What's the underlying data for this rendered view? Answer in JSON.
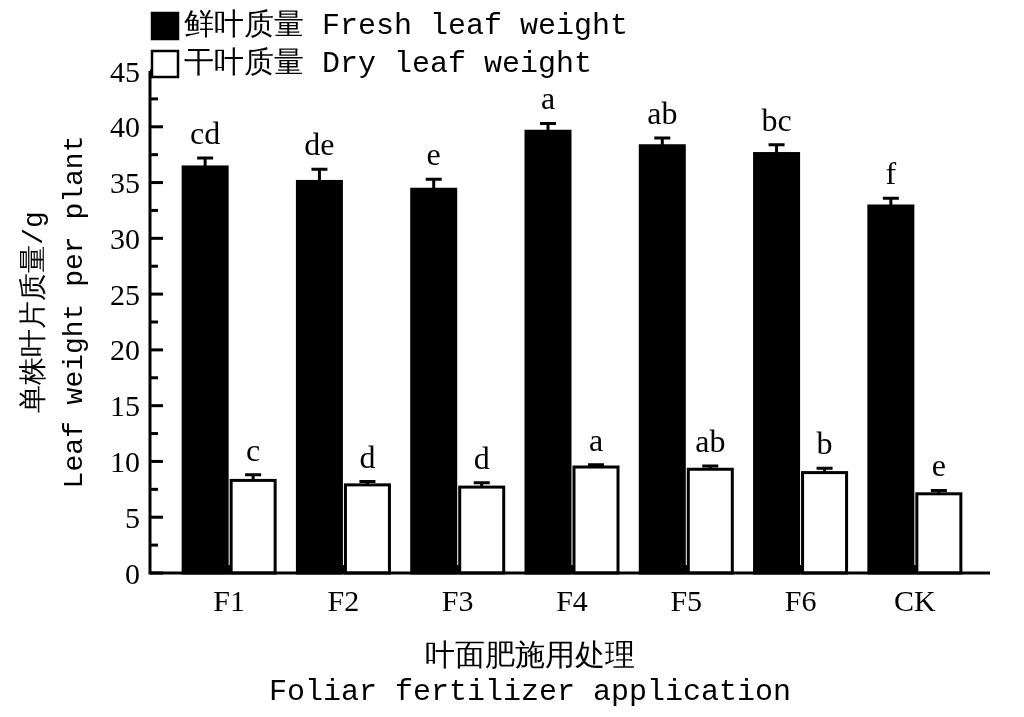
{
  "chart_data": {
    "type": "bar",
    "xlabel": "叶面肥施用处理\nFoliar fertilizer application",
    "ylabel": "单株叶片质量/g\nLeaf weight per plant",
    "categories": [
      "F1",
      "F2",
      "F3",
      "F4",
      "F5",
      "F6",
      "CK"
    ],
    "series": [
      {
        "name": "鲜叶质量 Fresh leaf weight",
        "color": "#000000",
        "values": [
          36.4,
          35.1,
          34.4,
          39.6,
          38.3,
          37.6,
          32.9
        ],
        "errors": [
          0.8,
          1.1,
          0.9,
          0.7,
          0.7,
          0.8,
          0.7
        ]
      },
      {
        "name": "干叶质量 Dry leaf weight",
        "color": "#ffffff",
        "values": [
          8.3,
          7.9,
          7.7,
          9.5,
          9.3,
          9.0,
          7.1
        ],
        "errors": [
          0.5,
          0.3,
          0.4,
          0.2,
          0.3,
          0.4,
          0.3
        ]
      }
    ],
    "ylim": [
      0,
      45
    ],
    "yticks": [
      0,
      {
        "value": 2.5,
        "label": null
      },
      5,
      {
        "value": 7.5,
        "label": null
      },
      10,
      {
        "value": 12.5,
        "label": null
      },
      15,
      {
        "value": 17.5,
        "label": null
      },
      20,
      {
        "value": 22.5,
        "label": null
      },
      25,
      {
        "value": 27.5,
        "label": null
      },
      30,
      {
        "value": 32.5,
        "label": null
      },
      35,
      {
        "value": 37.5,
        "label": null
      },
      40,
      {
        "value": 42.5,
        "label": null
      },
      45
    ],
    "legend": "top left",
    "grid": false,
    "annotations": [
      {
        "text": "cd",
        "x": "F1",
        "y": 36.4
      },
      {
        "text": "de",
        "x": "F2",
        "y": 35.1
      },
      {
        "text": "e",
        "x": "F3",
        "y": 34.4
      },
      {
        "text": "a",
        "x": "F4",
        "y": 39.6
      },
      {
        "text": "ab",
        "x": "F5",
        "y": 38.3
      },
      {
        "text": "bc",
        "x": "F6",
        "y": 37.6
      },
      {
        "text": "f",
        "x": "CK",
        "y": 32.9
      },
      {
        "text": "c",
        "x": "F1",
        "y": 8.3
      },
      {
        "text": "d",
        "x": "F2",
        "y": 7.9
      },
      {
        "text": "d",
        "x": "F3",
        "y": 7.7
      },
      {
        "text": "a",
        "x": "F4",
        "y": 9.5
      },
      {
        "text": "ab",
        "x": "F5",
        "y": 9.3
      },
      {
        "text": "b",
        "x": "F6",
        "y": 9.0
      },
      {
        "text": "e",
        "x": "CK",
        "y": 7.1
      }
    ]
  }
}
